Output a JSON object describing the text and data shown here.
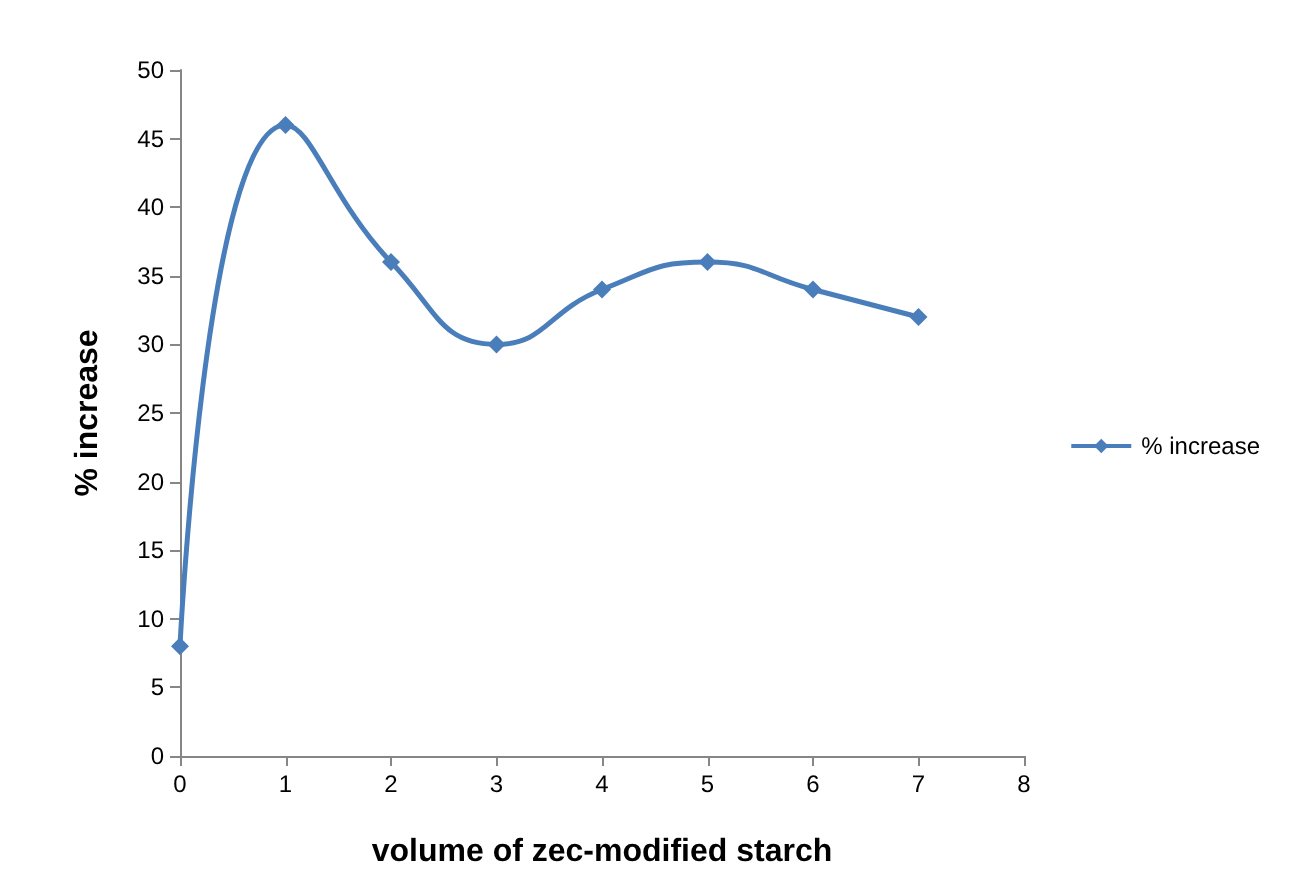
{
  "chart_data": {
    "type": "line",
    "xlabel": "volume of zec-modified starch",
    "ylabel": "% increase",
    "x": [
      0,
      1,
      2,
      3,
      4,
      5,
      6,
      7
    ],
    "series": [
      {
        "name": "% increase",
        "color": "#4a7ebb",
        "values": [
          8,
          46,
          36,
          30,
          34,
          36,
          34,
          32
        ]
      }
    ],
    "xlim": [
      0,
      8
    ],
    "xticks": [
      0,
      1,
      2,
      3,
      4,
      5,
      6,
      7,
      8
    ],
    "ylim": [
      0,
      50
    ],
    "yticks": [
      0,
      5,
      10,
      15,
      20,
      25,
      30,
      35,
      40,
      45,
      50
    ],
    "grid": false,
    "legend": "right",
    "marker": "diamond",
    "line_style": "solid"
  }
}
